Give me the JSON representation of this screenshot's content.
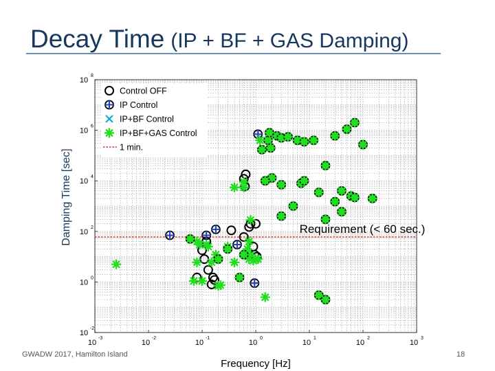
{
  "slide": {
    "title_main": "Decay Time",
    "title_sub": "(IP + BF + GAS Damping)",
    "footer": "GWADW 2017, Hamilton Island",
    "page_number": "18"
  },
  "chart_data": {
    "type": "scatter",
    "title": "",
    "xlabel": "Frequency [Hz]",
    "ylabel": "Damping Time [sec]",
    "xscale": "log",
    "yscale": "log",
    "xlim": [
      0.001,
      1000
    ],
    "ylim": [
      0.01,
      100000000
    ],
    "grid": true,
    "legend_position": "top-left",
    "x_ticks": [
      {
        "base": "10",
        "exp": "-3"
      },
      {
        "base": "10",
        "exp": "-2"
      },
      {
        "base": "10",
        "exp": "-1"
      },
      {
        "base": "10",
        "exp": "0"
      },
      {
        "base": "10",
        "exp": "1"
      },
      {
        "base": "10",
        "exp": "2"
      },
      {
        "base": "10",
        "exp": "3"
      }
    ],
    "y_ticks": [
      {
        "base": "10",
        "exp": "-2"
      },
      {
        "base": "10",
        "exp": "0"
      },
      {
        "base": "10",
        "exp": "2"
      },
      {
        "base": "10",
        "exp": "4"
      },
      {
        "base": "10",
        "exp": "6"
      },
      {
        "base": "10",
        "exp": "8"
      }
    ],
    "annotations": [
      {
        "text": "Requirement (< 60 sec.)"
      }
    ],
    "reference_line": {
      "name": "1 min.",
      "y": 60,
      "color": "#cc0000"
    },
    "series": [
      {
        "name": "Control OFF",
        "marker": "circle",
        "color": "#000000",
        "points": [
          [
            0.12,
            40
          ],
          [
            0.1,
            18
          ],
          [
            0.11,
            8
          ],
          [
            0.13,
            3
          ],
          [
            0.16,
            1.5
          ],
          [
            0.15,
            0.8
          ],
          [
            0.6,
            60
          ],
          [
            0.75,
            150
          ],
          [
            0.8,
            200
          ],
          [
            0.6,
            12000
          ],
          [
            0.65,
            18000
          ],
          [
            0.63,
            6000
          ],
          [
            0.9,
            25
          ],
          [
            0.95,
            12
          ],
          [
            1.0,
            200
          ],
          [
            1.05,
            10
          ],
          [
            0.35,
            110
          ],
          [
            0.17,
            1.2
          ],
          [
            0.08,
            1.5
          ]
        ]
      },
      {
        "name": "IP Control",
        "marker": "plus-circle",
        "color": "#1f3fbf",
        "points": [
          [
            0.025,
            70
          ],
          [
            0.12,
            70
          ],
          [
            0.18,
            120
          ],
          [
            0.45,
            30
          ],
          [
            1.1,
            700000
          ],
          [
            0.95,
            0.9
          ]
        ]
      },
      {
        "name": "IP+BF Control",
        "marker": "cross",
        "color": "#00aacc",
        "points": []
      },
      {
        "name": "IP+BF+GAS Control",
        "marker": "asterisk",
        "color": "#22dd22",
        "points": [
          [
            0.0025,
            5
          ],
          [
            0.07,
            1.1
          ],
          [
            0.08,
            6
          ],
          [
            0.09,
            30
          ],
          [
            0.1,
            1.1
          ],
          [
            0.12,
            30
          ],
          [
            0.13,
            25
          ],
          [
            0.15,
            6
          ],
          [
            0.18,
            12
          ],
          [
            0.2,
            0.7
          ],
          [
            0.3,
            25
          ],
          [
            0.4,
            6
          ],
          [
            0.4,
            5500
          ],
          [
            0.6,
            5500
          ],
          [
            0.6,
            9000
          ],
          [
            0.7,
            20
          ],
          [
            0.75,
            8
          ],
          [
            0.8,
            12
          ],
          [
            0.8,
            280
          ],
          [
            0.9,
            7
          ],
          [
            1.0,
            8
          ],
          [
            1.1,
            8
          ],
          [
            1.2,
            400000
          ],
          [
            1.5,
            0.25
          ],
          [
            0.08,
            40
          ],
          [
            0.22,
            0.75
          ],
          [
            0.75,
            40
          ]
        ]
      },
      {
        "name": "IP+BF+GAS Control (circled)",
        "marker": "asterisk-circle",
        "color": "#22dd22",
        "points": [
          [
            1.3,
            170000
          ],
          [
            1.7,
            400000
          ],
          [
            1.8,
            800000
          ],
          [
            1.9,
            200000
          ],
          [
            2.5,
            600000
          ],
          [
            3,
            500000
          ],
          [
            4,
            550000
          ],
          [
            6,
            400000
          ],
          [
            8,
            350000
          ],
          [
            12,
            400000
          ],
          [
            30,
            600000
          ],
          [
            40,
            4000
          ],
          [
            50,
            1100000
          ],
          [
            70,
            2000000
          ],
          [
            100,
            270000
          ],
          [
            2,
            13000
          ],
          [
            3,
            7000
          ],
          [
            5,
            1000
          ],
          [
            7,
            8000
          ],
          [
            8,
            10000
          ],
          [
            15,
            3500
          ],
          [
            20,
            40000
          ],
          [
            30,
            1500
          ],
          [
            40,
            600
          ],
          [
            60,
            2500
          ],
          [
            70,
            2200
          ],
          [
            150,
            2000
          ],
          [
            20,
            300
          ],
          [
            1.5,
            10000
          ],
          [
            3,
            400
          ],
          [
            0.6,
            12
          ],
          [
            0.3,
            20
          ],
          [
            0.2,
            8
          ],
          [
            0.06,
            50
          ],
          [
            0.5,
            1.5
          ],
          [
            15,
            0.3
          ],
          [
            20,
            0.2
          ]
        ]
      }
    ]
  }
}
